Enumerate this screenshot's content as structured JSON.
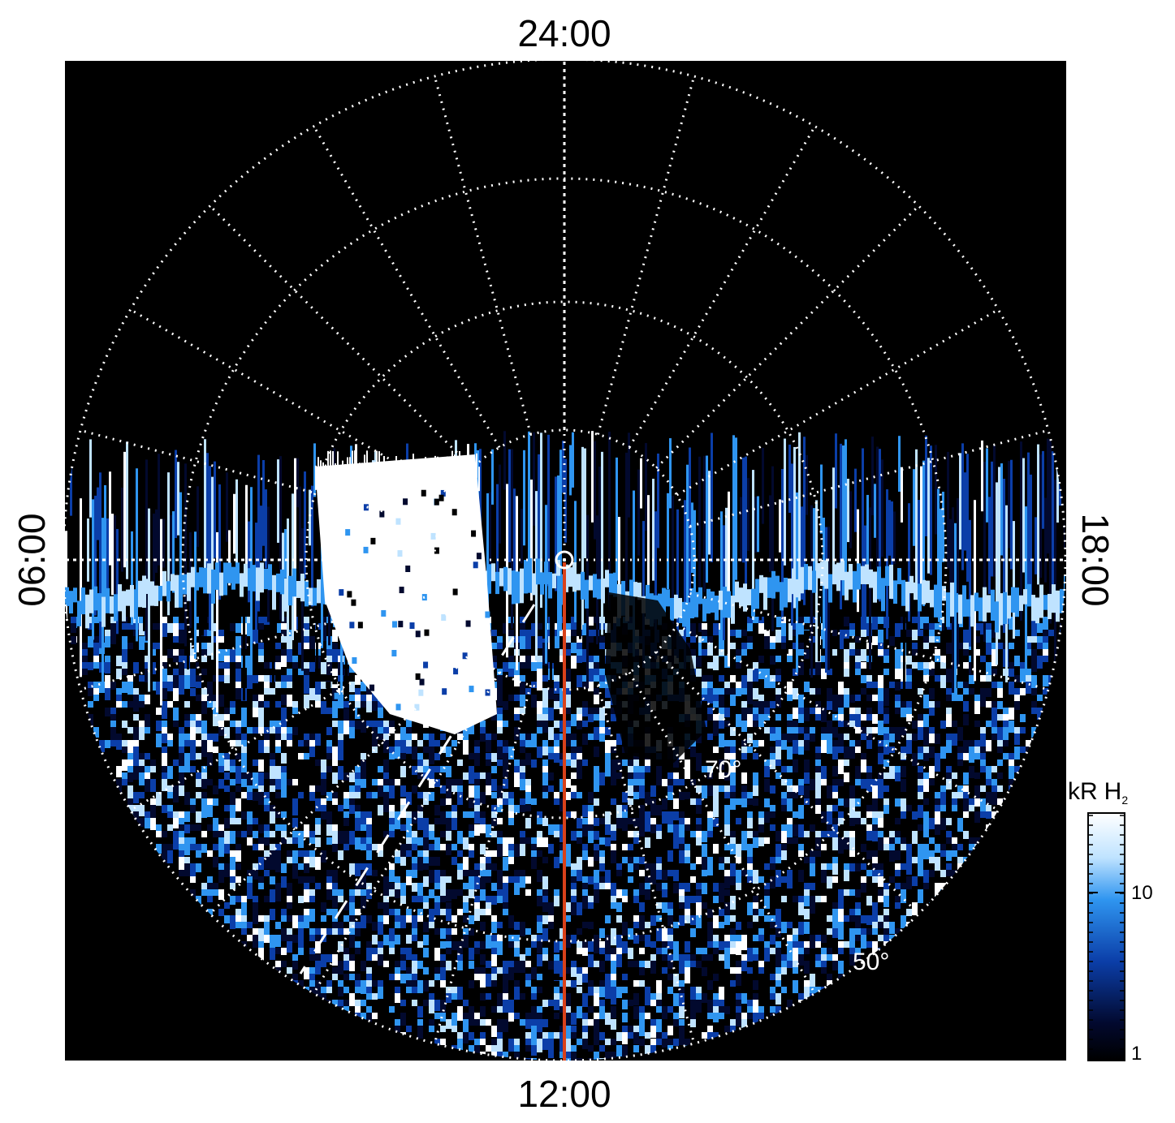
{
  "labels": {
    "lt_top": "24:00",
    "lt_bottom": "12:00",
    "lt_left": "06:00",
    "lt_right": "18:00",
    "lat_70": "70°",
    "lat_50": "50°"
  },
  "colorbar": {
    "unit": "kR",
    "species": "H",
    "species_sub": "2",
    "ticks": [
      {
        "value": 10,
        "label": "10"
      },
      {
        "value": 1,
        "label": "1"
      }
    ],
    "colors": [
      "#ffffff",
      "#bfe3ff",
      "#2f95f0",
      "#0b3ea8",
      "#02092e",
      "#000000"
    ]
  },
  "colors": {
    "background": "#000000",
    "grid": "#ffffff",
    "meridian_line": "#d9411a"
  }
}
